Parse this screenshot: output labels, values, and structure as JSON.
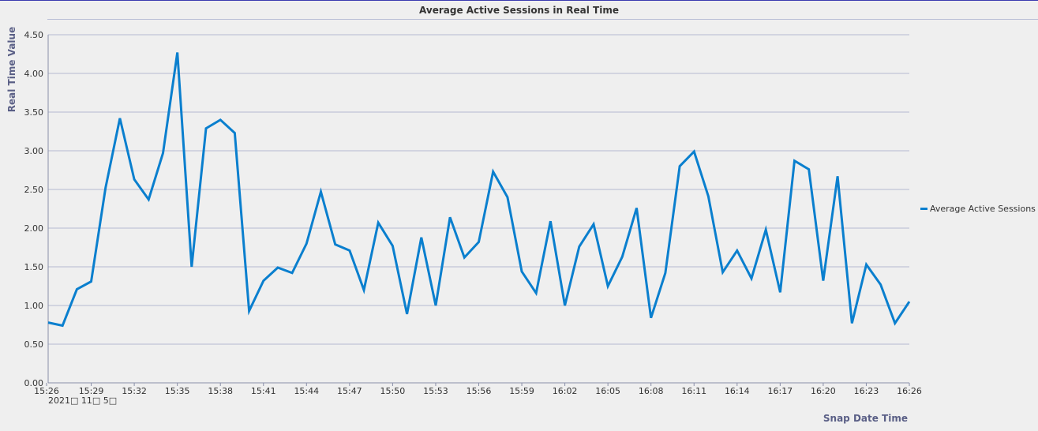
{
  "chart_data": {
    "type": "line",
    "title": "Average Active Sessions in Real Time",
    "ylabel": "Real Time Value",
    "xlabel": "Snap Date Time",
    "date_label": "2021□ 11□ 5□",
    "ylim": [
      0,
      4.5
    ],
    "ytick_labels": [
      "0.00",
      "0.50",
      "1.00",
      "1.50",
      "2.00",
      "2.50",
      "3.00",
      "3.50",
      "4.00",
      "4.50"
    ],
    "xtick_labels": [
      "15:26",
      "15:29",
      "15:32",
      "15:35",
      "15:38",
      "15:41",
      "15:44",
      "15:47",
      "15:50",
      "15:53",
      "15:56",
      "15:59",
      "16:02",
      "16:05",
      "16:08",
      "16:11",
      "16:14",
      "16:17",
      "16:20",
      "16:23",
      "16:26"
    ],
    "grid": true,
    "legend_position": "right",
    "color": "#0a7fce",
    "series": [
      {
        "name": "Average Active Sessions",
        "values": [
          0.78,
          0.74,
          1.21,
          1.31,
          2.52,
          3.42,
          2.63,
          2.37,
          2.97,
          4.27,
          1.5,
          3.29,
          3.4,
          3.23,
          0.93,
          1.32,
          1.49,
          1.42,
          1.8,
          2.47,
          1.79,
          1.71,
          1.2,
          2.07,
          1.77,
          0.89,
          1.88,
          1.0,
          2.14,
          1.62,
          1.82,
          2.73,
          2.4,
          1.44,
          1.16,
          2.09,
          1.0,
          1.76,
          2.05,
          1.25,
          1.63,
          2.26,
          0.84,
          1.42,
          2.8,
          2.99,
          2.41,
          1.43,
          1.71,
          1.35,
          1.98,
          1.17,
          2.87,
          2.76,
          1.32,
          2.67,
          0.77,
          1.53,
          1.27,
          0.77,
          1.05
        ]
      }
    ]
  }
}
